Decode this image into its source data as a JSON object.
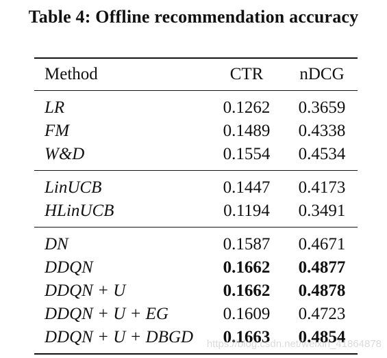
{
  "caption": "Table 4: Offline recommendation accuracy",
  "columns": [
    "Method",
    "CTR",
    "nDCG"
  ],
  "groups": [
    [
      {
        "method": "LR",
        "ctr": "0.1262",
        "ndcg": "0.3659",
        "ctr_bold": false,
        "ndcg_bold": false
      },
      {
        "method": "FM",
        "ctr": "0.1489",
        "ndcg": "0.4338",
        "ctr_bold": false,
        "ndcg_bold": false
      },
      {
        "method": "W&D",
        "ctr": "0.1554",
        "ndcg": "0.4534",
        "ctr_bold": false,
        "ndcg_bold": false
      }
    ],
    [
      {
        "method": "LinUCB",
        "ctr": "0.1447",
        "ndcg": "0.4173",
        "ctr_bold": false,
        "ndcg_bold": false
      },
      {
        "method": "HLinUCB",
        "ctr": "0.1194",
        "ndcg": "0.3491",
        "ctr_bold": false,
        "ndcg_bold": false
      }
    ],
    [
      {
        "method": "DN",
        "ctr": "0.1587",
        "ndcg": "0.4671",
        "ctr_bold": false,
        "ndcg_bold": false
      },
      {
        "method": "DDQN",
        "ctr": "0.1662",
        "ndcg": "0.4877",
        "ctr_bold": true,
        "ndcg_bold": true
      },
      {
        "method": "DDQN + U",
        "ctr": "0.1662",
        "ndcg": "0.4878",
        "ctr_bold": true,
        "ndcg_bold": true
      },
      {
        "method": "DDQN + U + EG",
        "ctr": "0.1609",
        "ndcg": "0.4723",
        "ctr_bold": false,
        "ndcg_bold": false
      },
      {
        "method": "DDQN + U + DBGD",
        "ctr": "0.1663",
        "ndcg": "0.4854",
        "ctr_bold": true,
        "ndcg_bold": true
      }
    ]
  ],
  "watermark": "https://blog.csdn.net/weixin_41864878"
}
